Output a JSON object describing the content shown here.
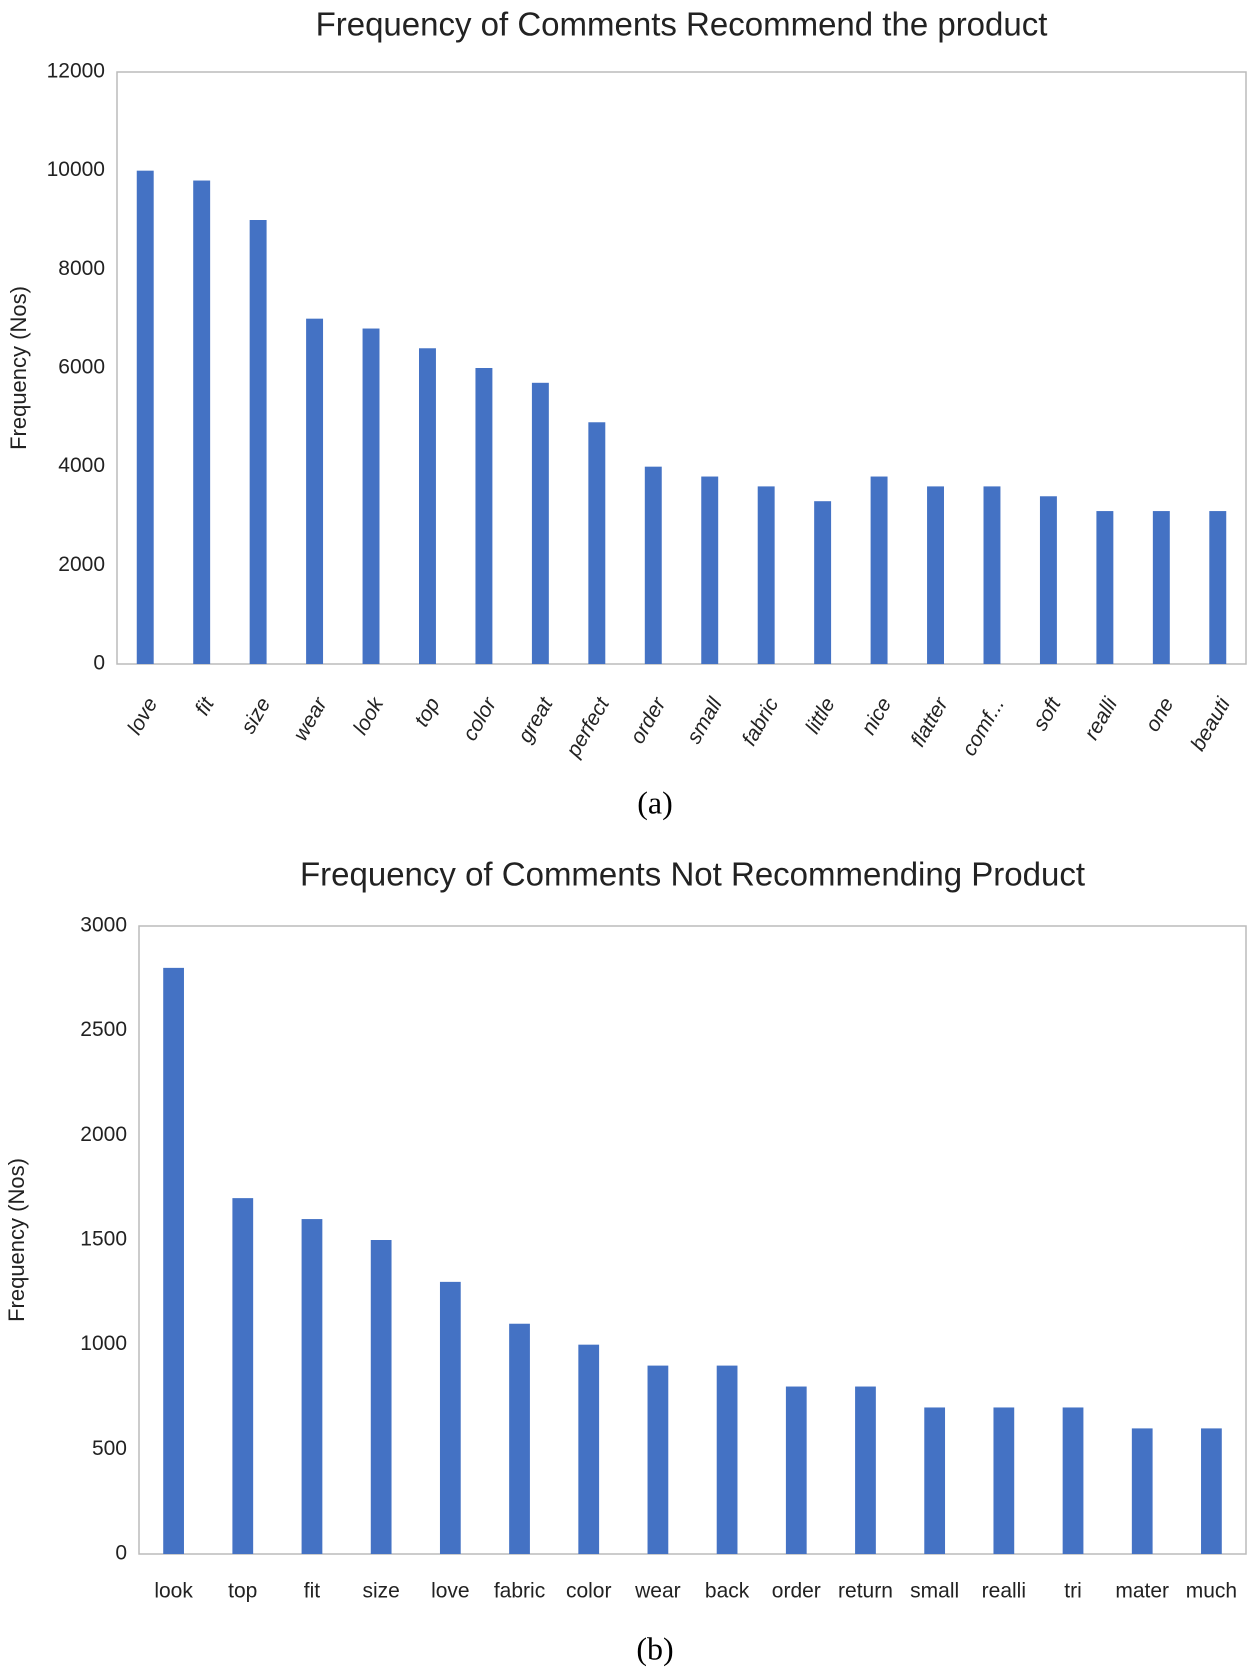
{
  "chart_data": [
    {
      "type": "bar",
      "title": "Frequency of  Comments Recommend the product",
      "y_label": "Frequency (Nos)",
      "caption": "(a)",
      "categories": [
        "love",
        "fit",
        "size",
        "wear",
        "look",
        "top",
        "color",
        "great",
        "perfect",
        "order",
        "small",
        "fabric",
        "little",
        "nice",
        "flatter",
        "comf...",
        "soft",
        "realli",
        "one",
        "beauti"
      ],
      "values": [
        10000,
        9800,
        9000,
        7000,
        6800,
        6400,
        6000,
        5700,
        4900,
        4000,
        3800,
        3600,
        3300,
        3800,
        3600,
        3600,
        3400,
        3100,
        3100,
        3100
      ],
      "color": "#4472c4",
      "ylim": [
        0,
        12000
      ],
      "yticks": [
        0,
        2000,
        4000,
        6000,
        8000,
        10000,
        12000
      ],
      "grid": false
    },
    {
      "type": "bar",
      "title": "Frequency of Comments Not Recommending Product",
      "y_label": "Frequency (Nos)",
      "caption": "(b)",
      "categories": [
        "look",
        "top",
        "fit",
        "size",
        "love",
        "fabric",
        "color",
        "wear",
        "back",
        "order",
        "return",
        "small",
        "realli",
        "tri",
        "mater",
        "much"
      ],
      "values": [
        2800,
        1700,
        1600,
        1500,
        1300,
        1100,
        1000,
        900,
        900,
        800,
        800,
        700,
        700,
        700,
        600,
        600
      ],
      "color": "#4472c4",
      "ylim": [
        0,
        3000
      ],
      "yticks": [
        0,
        500,
        1000,
        1500,
        2000,
        2500,
        3000
      ],
      "grid": false
    }
  ]
}
